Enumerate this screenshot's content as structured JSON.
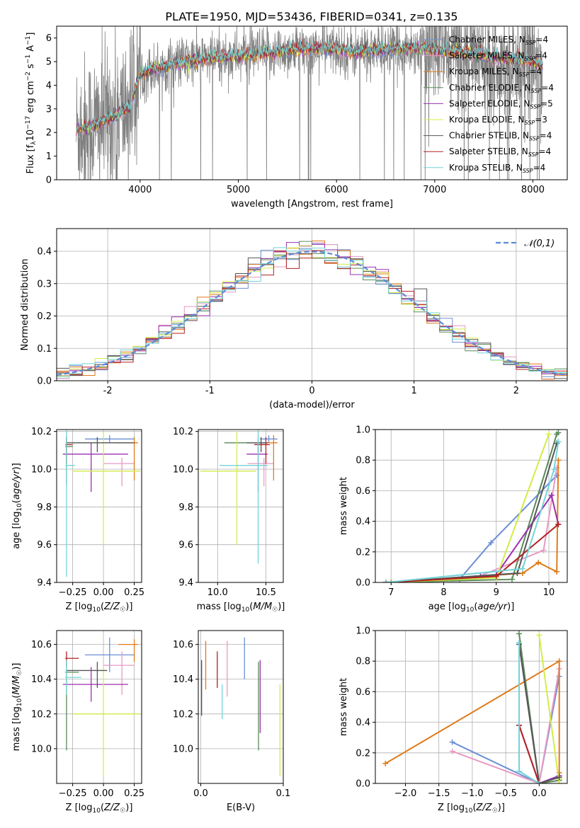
{
  "figure": {
    "title": "PLATE=1950, MJD=53436, FIBERID=0341, z=0.135"
  },
  "chart_data": [
    {
      "id": "spectrum",
      "type": "line",
      "xlabel": "wavelength [Angstrom, rest frame]",
      "ylabel": "Flux [f_λ 10^-17 erg cm^-2 s^-1 A^-1]",
      "xlim": [
        3150,
        8350
      ],
      "ylim": [
        0,
        6.5
      ],
      "xticks": [
        4000,
        5000,
        6000,
        7000,
        8000
      ],
      "yticks": [
        0,
        1,
        2,
        3,
        4,
        5,
        6
      ],
      "grid": false,
      "legend_position": "right",
      "legend": [
        {
          "model": "Chabrier MILES",
          "n": "4",
          "color": "#6b8fd6"
        },
        {
          "model": "Salpeter MILES",
          "n": "4",
          "color": "#e79ac4"
        },
        {
          "model": "Kroupa MILES",
          "n": "4",
          "color": "#e07b1a"
        },
        {
          "model": "Chabrier ELODIE",
          "n": "4",
          "color": "#5a8a5a"
        },
        {
          "model": "Salpeter ELODIE",
          "n": "5",
          "color": "#9b30b0"
        },
        {
          "model": "Kroupa ELODIE",
          "n": "3",
          "color": "#d4ec48"
        },
        {
          "model": "Chabrier STELIB",
          "n": "4",
          "color": "#555555"
        },
        {
          "model": "Salpeter STELIB",
          "n": "4",
          "color": "#b22222"
        },
        {
          "model": "Kroupa STELIB",
          "n": "4",
          "color": "#72d4d8"
        }
      ],
      "data_color": "#808080",
      "continuum": {
        "x": [
          3350,
          3500,
          3700,
          3900,
          4000,
          4300,
          4600,
          5000,
          5300,
          5600,
          5900,
          6200,
          6500,
          6800,
          7100,
          7400,
          7700,
          8000,
          8100
        ],
        "y": [
          2.1,
          2.25,
          2.6,
          3.1,
          4.5,
          4.85,
          5.1,
          5.25,
          5.35,
          5.5,
          5.55,
          5.4,
          5.5,
          5.6,
          5.45,
          5.35,
          5.1,
          5.0,
          4.8
        ]
      }
    },
    {
      "id": "residuals",
      "type": "histogram",
      "xlabel": "(data-model)/error",
      "ylabel": "Normed distribution",
      "xlim": [
        -2.5,
        2.5
      ],
      "ylim": [
        0,
        0.47
      ],
      "xticks": [
        -2,
        -1,
        0,
        1,
        2
      ],
      "yticks": [
        0.0,
        0.1,
        0.2,
        0.3,
        0.4
      ],
      "grid": true,
      "legend_label": "𝒩(0,1)",
      "gaussian_color": "#5b8ad6",
      "bin_width": 0.125
    },
    {
      "id": "age-vs-z",
      "type": "scatter",
      "xlabel": "Z [log10(Z/Z☉)]",
      "ylabel": "age  [log10(age/yr)]",
      "xlim": [
        -0.38,
        0.31
      ],
      "ylim": [
        9.4,
        10.21
      ],
      "xticks": [
        -0.25,
        0.0,
        0.25
      ],
      "xticklabels": [
        "−0.25",
        "0.00",
        "0.25"
      ],
      "yticks": [
        9.4,
        9.6,
        9.8,
        10.0,
        10.2
      ],
      "grid": true,
      "points": [
        {
          "x": 0.05,
          "y": 10.16,
          "xerr": [
            0.2,
            0.2
          ],
          "yerr": [
            0.02,
            0.02
          ],
          "color": "#6b8fd6"
        },
        {
          "x": 0.15,
          "y": 10.03,
          "xerr": [
            0.15,
            0.1
          ],
          "yerr": [
            0.12,
            0.03
          ],
          "color": "#e79ac4"
        },
        {
          "x": 0.25,
          "y": 10.14,
          "xerr": [
            0.15,
            0.03
          ],
          "yerr": [
            0.2,
            0.03
          ],
          "color": "#e07b1a"
        },
        {
          "x": -0.3,
          "y": 10.12,
          "xerr": [
            0.01,
            0.05
          ],
          "yerr": [
            0.2,
            0.05
          ],
          "color": "#5a8a5a"
        },
        {
          "x": -0.1,
          "y": 10.08,
          "xerr": [
            0.23,
            0.3
          ],
          "yerr": [
            0.2,
            0.06
          ],
          "color": "#9b30b0"
        },
        {
          "x": 0.0,
          "y": 9.99,
          "xerr": [
            0.25,
            0.3
          ],
          "yerr": [
            0.39,
            0.21
          ],
          "color": "#d4ec48"
        },
        {
          "x": -0.05,
          "y": 10.14,
          "xerr": [
            0.25,
            0.3
          ],
          "yerr": [
            0.05,
            0.03
          ],
          "color": "#555555"
        },
        {
          "x": -0.3,
          "y": 10.13,
          "xerr": [
            0.01,
            0.05
          ],
          "yerr": [
            0.1,
            0.04
          ],
          "color": "#b22222"
        },
        {
          "x": -0.3,
          "y": 10.02,
          "xerr": [
            0.01,
            0.07
          ],
          "yerr": [
            0.59,
            0.19
          ],
          "color": "#72d4d8"
        }
      ]
    },
    {
      "id": "age-vs-mass",
      "type": "scatter",
      "xlabel": "mass [log10(M/M☉)]",
      "ylabel": "",
      "xlim": [
        9.8,
        10.68
      ],
      "ylim": [
        9.4,
        10.21
      ],
      "xticks": [
        10.0,
        10.5
      ],
      "xticklabels": [
        "10.0",
        "10.5"
      ],
      "yticks": [
        9.4,
        9.6,
        9.8,
        10.0,
        10.2
      ],
      "grid": true,
      "points": [
        {
          "x": 10.53,
          "y": 10.16,
          "xerr": [
            0.09,
            0.09
          ],
          "yerr": [
            0.02,
            0.02
          ],
          "color": "#6b8fd6"
        },
        {
          "x": 10.48,
          "y": 10.03,
          "xerr": [
            0.17,
            0.1
          ],
          "yerr": [
            0.12,
            0.03
          ],
          "color": "#e79ac4"
        },
        {
          "x": 10.58,
          "y": 10.14,
          "xerr": [
            0.12,
            0.04
          ],
          "yerr": [
            0.2,
            0.04
          ],
          "color": "#e07b1a"
        },
        {
          "x": 10.42,
          "y": 10.14,
          "xerr": [
            0.35,
            0.1
          ],
          "yerr": [
            0.05,
            0.03
          ],
          "color": "#5a8a5a"
        },
        {
          "x": 10.42,
          "y": 10.08,
          "xerr": [
            0.12,
            0.1
          ],
          "yerr": [
            0.2,
            0.06
          ],
          "color": "#9b30b0"
        },
        {
          "x": 10.2,
          "y": 9.99,
          "xerr": [
            0.38,
            0.2
          ],
          "yerr": [
            0.39,
            0.21
          ],
          "color": "#d4ec48"
        },
        {
          "x": 10.45,
          "y": 10.14,
          "xerr": [
            0.15,
            0.07
          ],
          "yerr": [
            0.05,
            0.03
          ],
          "color": "#555555"
        },
        {
          "x": 10.5,
          "y": 10.13,
          "xerr": [
            0.12,
            0.04
          ],
          "yerr": [
            0.1,
            0.04
          ],
          "color": "#b22222"
        },
        {
          "x": 10.42,
          "y": 10.02,
          "xerr": [
            0.4,
            0.1
          ],
          "yerr": [
            0.52,
            0.19
          ],
          "color": "#72d4d8"
        }
      ]
    },
    {
      "id": "massweight-vs-age",
      "type": "line",
      "xlabel": "age  [log10(age/yr)]",
      "ylabel": "mass weight",
      "xlim": [
        6.7,
        10.35
      ],
      "ylim": [
        0,
        1.0
      ],
      "xticks": [
        7,
        8,
        9,
        10
      ],
      "yticks": [
        0.0,
        0.2,
        0.4,
        0.6,
        0.8,
        1.0
      ],
      "yticklabels": [
        "0.0",
        "0.2",
        "0.4",
        "0.6",
        "0.8",
        "1.0"
      ],
      "grid": true,
      "series": [
        {
          "color": "#6b8fd6",
          "x": [
            6.9,
            8.3,
            8.9,
            10.15
          ],
          "y": [
            0.0,
            0.02,
            0.26,
            0.7
          ]
        },
        {
          "color": "#e79ac4",
          "x": [
            6.9,
            8.6,
            9.9,
            10.15
          ],
          "y": [
            0.0,
            0.03,
            0.21,
            0.75
          ]
        },
        {
          "color": "#e07b1a",
          "x": [
            7.0,
            9.5,
            9.8,
            10.15,
            10.18
          ],
          "y": [
            0.0,
            0.06,
            0.13,
            0.07,
            0.8
          ]
        },
        {
          "color": "#5a8a5a",
          "x": [
            6.9,
            9.3,
            10.15,
            10.18
          ],
          "y": [
            0.0,
            0.02,
            0.97,
            0.98
          ]
        },
        {
          "color": "#9b30b0",
          "x": [
            6.9,
            8.7,
            9.0,
            10.05,
            10.18
          ],
          "y": [
            0.0,
            0.04,
            0.05,
            0.57,
            0.38
          ]
        },
        {
          "color": "#d4ec48",
          "x": [
            6.9,
            9.0,
            10.0
          ],
          "y": [
            0.0,
            0.03,
            0.97
          ]
        },
        {
          "color": "#555555",
          "x": [
            6.9,
            9.4,
            10.15,
            10.18
          ],
          "y": [
            0.0,
            0.06,
            0.91,
            0.92
          ]
        },
        {
          "color": "#b22222",
          "x": [
            6.9,
            9.0,
            10.18
          ],
          "y": [
            0.0,
            0.04,
            0.38
          ]
        },
        {
          "color": "#72d4d8",
          "x": [
            6.9,
            9.5,
            10.1,
            10.18
          ],
          "y": [
            0.0,
            0.09,
            0.74,
            0.92
          ]
        }
      ]
    },
    {
      "id": "mass-vs-z",
      "type": "scatter",
      "xlabel": "Z [log10(Z/Z☉)]",
      "ylabel": "mass [log10(M/M☉)]",
      "xlim": [
        -0.38,
        0.31
      ],
      "ylim": [
        9.8,
        10.68
      ],
      "xticks": [
        -0.25,
        0.0,
        0.25
      ],
      "xticklabels": [
        "−0.25",
        "0.00",
        "0.25"
      ],
      "yticks": [
        10.0,
        10.2,
        10.4,
        10.6
      ],
      "grid": true,
      "points": [
        {
          "x": 0.05,
          "y": 10.54,
          "xerr": [
            0.2,
            0.2
          ],
          "yerr": [
            0.1,
            0.1
          ],
          "color": "#6b8fd6"
        },
        {
          "x": 0.15,
          "y": 10.48,
          "xerr": [
            0.15,
            0.1
          ],
          "yerr": [
            0.17,
            0.08
          ],
          "color": "#e79ac4"
        },
        {
          "x": 0.25,
          "y": 10.6,
          "xerr": [
            0.13,
            0.03
          ],
          "yerr": [
            0.1,
            0.03
          ],
          "color": "#e07b1a"
        },
        {
          "x": -0.3,
          "y": 10.44,
          "xerr": [
            0.01,
            0.1
          ],
          "yerr": [
            0.45,
            0.05
          ],
          "color": "#5a8a5a"
        },
        {
          "x": -0.1,
          "y": 10.37,
          "xerr": [
            0.23,
            0.3
          ],
          "yerr": [
            0.1,
            0.1
          ],
          "color": "#9b30b0"
        },
        {
          "x": 0.0,
          "y": 10.2,
          "xerr": [
            0.25,
            0.3
          ],
          "yerr": [
            0.36,
            0.27
          ],
          "color": "#d4ec48"
        },
        {
          "x": -0.05,
          "y": 10.45,
          "xerr": [
            0.25,
            0.08
          ],
          "yerr": [
            0.1,
            0.05
          ],
          "color": "#555555"
        },
        {
          "x": -0.3,
          "y": 10.52,
          "xerr": [
            0.01,
            0.1
          ],
          "yerr": [
            0.04,
            0.04
          ],
          "color": "#b22222"
        },
        {
          "x": -0.3,
          "y": 10.41,
          "xerr": [
            0.01,
            0.12
          ],
          "yerr": [
            0.1,
            0.1
          ],
          "color": "#72d4d8"
        }
      ]
    },
    {
      "id": "mass-vs-ebv",
      "type": "scatter",
      "xlabel": "E(B-V)",
      "ylabel": "",
      "xlim": [
        -0.003,
        0.1
      ],
      "ylim": [
        9.8,
        10.68
      ],
      "xticks": [
        0.0,
        0.1
      ],
      "xticklabels": [
        "0.0",
        "0.1"
      ],
      "yticks": [
        10.0,
        10.2,
        10.4,
        10.6
      ],
      "grid": true,
      "points": [
        {
          "x": 0.053,
          "y": 10.52,
          "xerr": [
            0,
            0
          ],
          "yerr": [
            0.12,
            0.12
          ],
          "color": "#6b8fd6"
        },
        {
          "x": 0.032,
          "y": 10.42,
          "xerr": [
            0,
            0
          ],
          "yerr": [
            0.12,
            0.2
          ],
          "color": "#e79ac4"
        },
        {
          "x": 0.006,
          "y": 10.48,
          "xerr": [
            0,
            0
          ],
          "yerr": [
            0.14,
            0.14
          ],
          "color": "#e07b1a"
        },
        {
          "x": 0.07,
          "y": 10.2,
          "xerr": [
            0,
            0
          ],
          "yerr": [
            0.21,
            0.3
          ],
          "color": "#5a8a5a"
        },
        {
          "x": 0.072,
          "y": 10.3,
          "xerr": [
            0,
            0
          ],
          "yerr": [
            0.21,
            0.21
          ],
          "color": "#9b30b0"
        },
        {
          "x": 0.096,
          "y": 10.05,
          "xerr": [
            0,
            0
          ],
          "yerr": [
            0.21,
            0.32
          ],
          "color": "#d4ec48"
        },
        {
          "x": 0.001,
          "y": 10.35,
          "xerr": [
            0,
            0
          ],
          "yerr": [
            0.16,
            0.16
          ],
          "color": "#555555"
        },
        {
          "x": 0.02,
          "y": 10.45,
          "xerr": [
            0,
            0
          ],
          "yerr": [
            0.1,
            0.11
          ],
          "color": "#b22222"
        },
        {
          "x": 0.026,
          "y": 10.25,
          "xerr": [
            0,
            0
          ],
          "yerr": [
            0.08,
            0.12
          ],
          "color": "#72d4d8"
        }
      ]
    },
    {
      "id": "massweight-vs-z",
      "type": "line",
      "xlabel": "Z [log10(Z/Z☉)]",
      "ylabel": "mass weight",
      "xlim": [
        -2.45,
        0.42
      ],
      "ylim": [
        0,
        1.0
      ],
      "xticks": [
        -2.0,
        -1.5,
        -1.0,
        -0.5,
        0.0
      ],
      "xticklabels": [
        "−2.0",
        "−1.5",
        "−1.0",
        "−0.5",
        "0.0"
      ],
      "yticks": [
        0.0,
        0.2,
        0.4,
        0.6,
        0.8,
        1.0
      ],
      "yticklabels": [
        "0.0",
        "0.2",
        "0.4",
        "0.6",
        "0.8",
        "1.0"
      ],
      "grid": true,
      "series": [
        {
          "color": "#6b8fd6",
          "x": [
            -1.3,
            0.0,
            0.3
          ],
          "y": [
            0.27,
            0.0,
            0.7
          ]
        },
        {
          "color": "#e79ac4",
          "x": [
            -1.3,
            0.0,
            0.3
          ],
          "y": [
            0.21,
            0.0,
            0.75
          ]
        },
        {
          "color": "#e07b1a",
          "x": [
            -2.3,
            0.3,
            0.3
          ],
          "y": [
            0.13,
            0.8,
            0.07
          ]
        },
        {
          "color": "#5a8a5a",
          "x": [
            -0.3,
            0.0,
            0.3
          ],
          "y": [
            0.98,
            0.0,
            0.02
          ]
        },
        {
          "color": "#9b30b0",
          "x": [
            -0.3,
            0.0,
            0.3
          ],
          "y": [
            0.38,
            0.0,
            0.05
          ]
        },
        {
          "color": "#d4ec48",
          "x": [
            0.0,
            0.3,
            0.3
          ],
          "y": [
            0.97,
            0.0,
            0.03
          ]
        },
        {
          "color": "#555555",
          "x": [
            -0.3,
            0.0,
            0.3
          ],
          "y": [
            0.91,
            0.0,
            0.04
          ]
        },
        {
          "color": "#b22222",
          "x": [
            -0.3,
            0.0
          ],
          "y": [
            0.38,
            0.0
          ]
        },
        {
          "color": "#72d4d8",
          "x": [
            -0.3,
            -0.3,
            0.0
          ],
          "y": [
            0.92,
            0.08,
            0.0
          ]
        }
      ]
    }
  ]
}
